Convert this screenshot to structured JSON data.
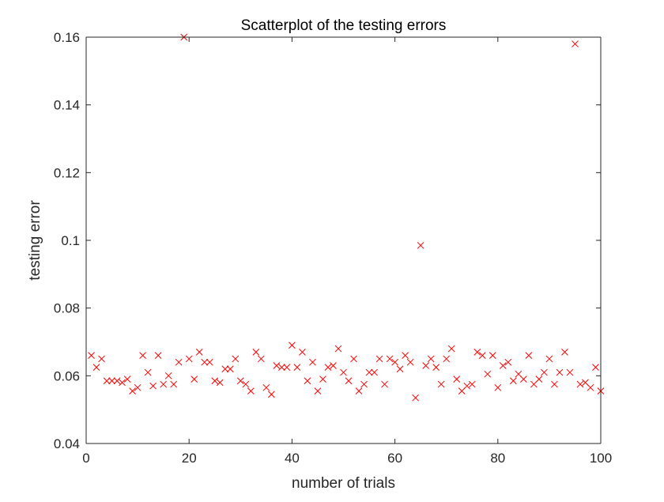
{
  "chart_data": {
    "type": "scatter",
    "title": "Scatterplot of the testing errors",
    "xlabel": "number of trials",
    "ylabel": "testing error",
    "xlim": [
      0,
      100
    ],
    "ylim": [
      0.04,
      0.16
    ],
    "xticks": [
      0,
      20,
      40,
      60,
      80,
      100
    ],
    "xtick_labels": [
      "0",
      "20",
      "40",
      "60",
      "80",
      "100"
    ],
    "yticks": [
      0.04,
      0.06,
      0.08,
      0.1,
      0.12,
      0.14,
      0.16
    ],
    "ytick_labels": [
      "0.04",
      "0.06",
      "0.08",
      "0.1",
      "0.12",
      "0.14",
      "0.16"
    ],
    "grid": false,
    "marker": "x",
    "marker_color": "#ff0000",
    "x": [
      1,
      2,
      3,
      4,
      5,
      6,
      7,
      8,
      9,
      10,
      11,
      12,
      13,
      14,
      15,
      16,
      17,
      18,
      19,
      20,
      21,
      22,
      23,
      24,
      25,
      26,
      27,
      28,
      29,
      30,
      31,
      32,
      33,
      34,
      35,
      36,
      37,
      38,
      39,
      40,
      41,
      42,
      43,
      44,
      45,
      46,
      47,
      48,
      49,
      50,
      51,
      52,
      53,
      54,
      55,
      56,
      57,
      58,
      59,
      60,
      61,
      62,
      63,
      64,
      65,
      66,
      67,
      68,
      69,
      70,
      71,
      72,
      73,
      74,
      75,
      76,
      77,
      78,
      79,
      80,
      81,
      82,
      83,
      84,
      85,
      86,
      87,
      88,
      89,
      90,
      91,
      92,
      93,
      94,
      95,
      96,
      97,
      98,
      99,
      100
    ],
    "y": [
      0.066,
      0.0625,
      0.065,
      0.0585,
      0.0585,
      0.0585,
      0.058,
      0.059,
      0.0555,
      0.0565,
      0.066,
      0.061,
      0.057,
      0.066,
      0.0575,
      0.06,
      0.0575,
      0.064,
      0.16,
      0.065,
      0.059,
      0.067,
      0.064,
      0.064,
      0.0585,
      0.058,
      0.062,
      0.062,
      0.065,
      0.0585,
      0.0575,
      0.0555,
      0.067,
      0.065,
      0.0565,
      0.0545,
      0.063,
      0.0625,
      0.0625,
      0.069,
      0.0625,
      0.067,
      0.0585,
      0.064,
      0.0555,
      0.059,
      0.0625,
      0.063,
      0.068,
      0.061,
      0.0585,
      0.065,
      0.0555,
      0.0575,
      0.061,
      0.061,
      0.065,
      0.0575,
      0.065,
      0.064,
      0.062,
      0.066,
      0.064,
      0.0535,
      0.0985,
      0.063,
      0.065,
      0.0625,
      0.0575,
      0.065,
      0.068,
      0.059,
      0.0555,
      0.057,
      0.0575,
      0.067,
      0.066,
      0.0605,
      0.066,
      0.0565,
      0.063,
      0.064,
      0.0585,
      0.0605,
      0.059,
      0.066,
      0.0575,
      0.059,
      0.061,
      0.065,
      0.0575,
      0.061,
      0.067,
      0.061,
      0.158,
      0.0575,
      0.058,
      0.0565,
      0.0625,
      0.0555
    ]
  }
}
